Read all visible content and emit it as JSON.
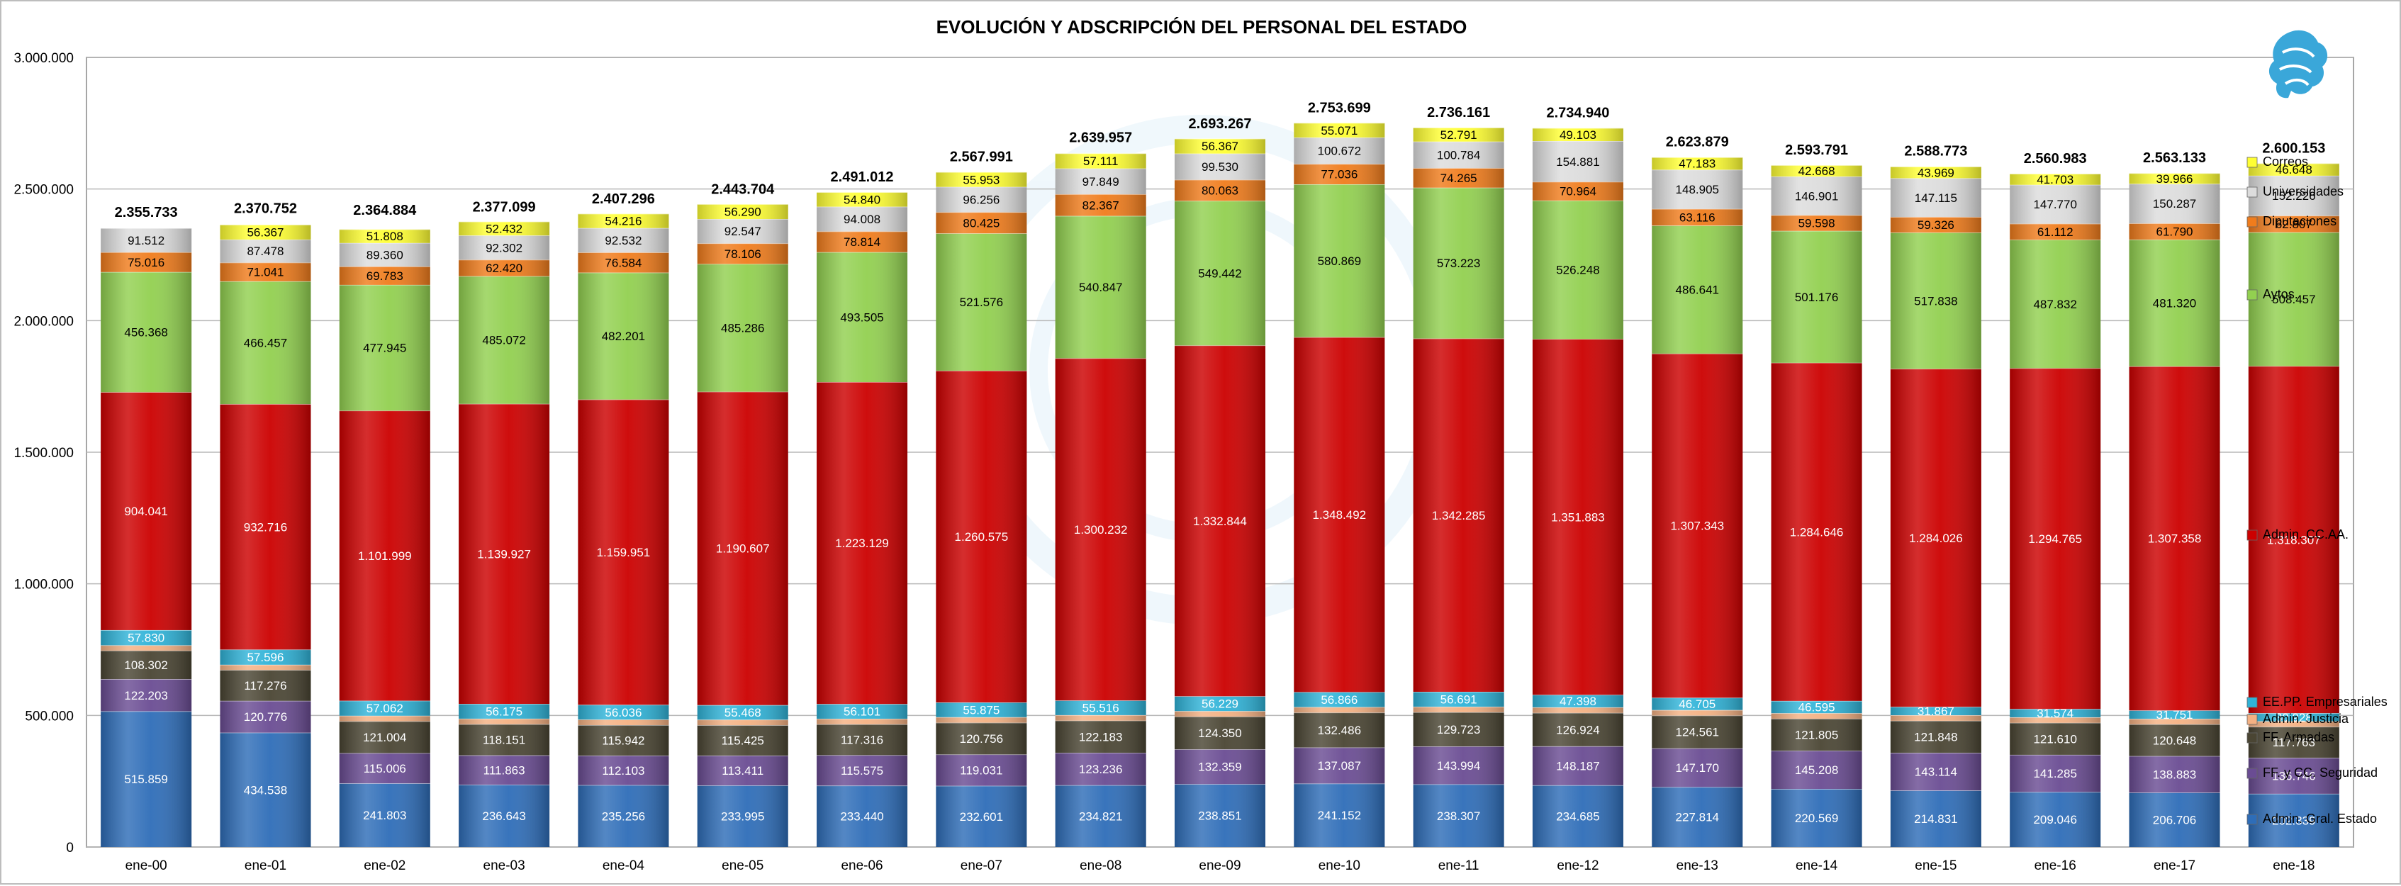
{
  "chart_data": {
    "type": "bar",
    "stacked": true,
    "title": "EVOLUCIÓN Y ADSCRIPCIÓN DEL PERSONAL DEL ESTADO",
    "xlabel": "",
    "ylabel": "",
    "ylim": [
      0,
      3000000
    ],
    "y_ticks": [
      "0",
      "500.000",
      "1.000.000",
      "1.500.000",
      "2.000.000",
      "2.500.000",
      "3.000.000"
    ],
    "y_tick_values": [
      0,
      500000,
      1000000,
      1500000,
      2000000,
      2500000,
      3000000
    ],
    "grid": true,
    "legend_position": "right",
    "categories": [
      "ene-00",
      "ene-01",
      "ene-02",
      "ene-03",
      "ene-04",
      "ene-05",
      "ene-06",
      "ene-07",
      "ene-08",
      "ene-09",
      "ene-10",
      "ene-11",
      "ene-12",
      "ene-13",
      "ene-14",
      "ene-15",
      "ene-16",
      "ene-17",
      "ene-18"
    ],
    "totals": [
      2355733,
      2370752,
      2364884,
      2377099,
      2407296,
      2443704,
      2491012,
      2567991,
      2639957,
      2693267,
      2753699,
      2736161,
      2734940,
      2623879,
      2593791,
      2588773,
      2560983,
      2563133,
      2600153
    ],
    "total_labels": [
      "2.355.733",
      "2.370.752",
      "2.364.884",
      "2.377.099",
      "2.407.296",
      "2.443.704",
      "2.491.012",
      "2.567.991",
      "2.639.957",
      "2.693.267",
      "2.753.699",
      "2.736.161",
      "2.734.940",
      "2.623.879",
      "2.593.791",
      "2.588.773",
      "2.560.983",
      "2.563.133",
      "2.600.153"
    ],
    "series": [
      {
        "name": "Admin. Gral. Estado",
        "color": "#2e6db8",
        "text_color": "#ffffff",
        "values": [
          515859,
          434538,
          241803,
          236643,
          235256,
          233995,
          233440,
          232601,
          234821,
          238851,
          241152,
          238307,
          234685,
          227814,
          220569,
          214831,
          209046,
          206706,
          202339
        ],
        "labels": [
          "515.859",
          "434.538",
          "241.803",
          "236.643",
          "235.256",
          "233.995",
          "233.440",
          "232.601",
          "234.821",
          "238.851",
          "241.152",
          "238.307",
          "234.685",
          "227.814",
          "220.569",
          "214.831",
          "209.046",
          "206.706",
          "202.339"
        ]
      },
      {
        "name": "FF. y CC. Seguridad",
        "color": "#6a4c93",
        "text_color": "#ffffff",
        "values": [
          122203,
          120776,
          115006,
          111863,
          112103,
          113411,
          115575,
          119031,
          123236,
          132359,
          137087,
          143994,
          148187,
          147170,
          145208,
          143114,
          141285,
          138883,
          136746
        ],
        "labels": [
          "122.203",
          "120.776",
          "115.006",
          "111.863",
          "112.103",
          "113.411",
          "115.575",
          "119.031",
          "123.236",
          "132.359",
          "137.087",
          "143.994",
          "148.187",
          "147.170",
          "145.208",
          "143.114",
          "141.285",
          "138.883",
          "136.746"
        ]
      },
      {
        "name": "FF. Armadas",
        "color": "#4a4533",
        "text_color": "#ffffff",
        "values": [
          108302,
          117276,
          121004,
          118151,
          115942,
          115425,
          117316,
          120756,
          122183,
          124350,
          132486,
          129723,
          126924,
          124561,
          121805,
          121848,
          121610,
          120648,
          117763
        ],
        "labels": [
          "108.302",
          "117.276",
          "121.004",
          "118.151",
          "115.942",
          "115.425",
          "117.316",
          "120.756",
          "122.183",
          "124.350",
          "132.486",
          "129.723",
          "126.924",
          "124.561",
          "121.805",
          "121.848",
          "121.610",
          "120.648",
          "117.763"
        ]
      },
      {
        "name": "Admin. Justicia",
        "color": "#f4b183",
        "text_color": "#000000",
        "values": [
          20000,
          20000,
          21000,
          21000,
          21000,
          21000,
          21000,
          21000,
          21000,
          21000,
          21000,
          21000,
          21000,
          21000,
          21000,
          21000,
          21000,
          21000,
          21000
        ],
        "labels": []
      },
      {
        "name": "EE.PP. Empresariales",
        "color": "#2fb3d8",
        "text_color": "#ffffff",
        "values": [
          57830,
          57596,
          57062,
          56175,
          56036,
          55468,
          56101,
          55875,
          55516,
          56229,
          56866,
          56691,
          47398,
          46705,
          46595,
          31867,
          31574,
          31751,
          30928
        ],
        "labels": [
          "57.830",
          "57.596",
          "57.062",
          "56.175",
          "56.036",
          "55.468",
          "56.101",
          "55.875",
          "55.516",
          "56.229",
          "56.866",
          "56.691",
          "47.398",
          "46.705",
          "46.595",
          "31.867",
          "31.574",
          "31.751",
          "30.928"
        ]
      },
      {
        "name": "Admin. CC.AA.",
        "color": "#cc0000",
        "text_color": "#ffffff",
        "values": [
          904041,
          932716,
          1101999,
          1139927,
          1159951,
          1190607,
          1223129,
          1260575,
          1300232,
          1332844,
          1348492,
          1342285,
          1351883,
          1307343,
          1284646,
          1284026,
          1294765,
          1307358,
          1318307
        ],
        "labels": [
          "904.041",
          "932.716",
          "1.101.999",
          "1.139.927",
          "1.159.951",
          "1.190.607",
          "1.223.129",
          "1.260.575",
          "1.300.232",
          "1.332.844",
          "1.348.492",
          "1.342.285",
          "1.351.883",
          "1.307.343",
          "1.284.646",
          "1.284.026",
          "1.294.765",
          "1.307.358",
          "1.318.307"
        ]
      },
      {
        "name": "Aytos.",
        "color": "#92d050",
        "text_color": "#000000",
        "values": [
          456368,
          466457,
          477945,
          485072,
          482201,
          485286,
          493505,
          521576,
          540847,
          549442,
          580869,
          573223,
          526248,
          486641,
          501176,
          517838,
          487832,
          481320,
          508457
        ],
        "labels": [
          "456.368",
          "466.457",
          "477.945",
          "485.072",
          "482.201",
          "485.286",
          "493.505",
          "521.576",
          "540.847",
          "549.442",
          "580.869",
          "573.223",
          "526.248",
          "486.641",
          "501.176",
          "517.838",
          "487.832",
          "481.320",
          "508.457"
        ]
      },
      {
        "name": "Diputaciones",
        "color": "#f07c1c",
        "text_color": "#000000",
        "values": [
          75016,
          71041,
          69783,
          62420,
          76584,
          78106,
          78814,
          80425,
          82367,
          80063,
          77036,
          74265,
          70964,
          63116,
          59598,
          59326,
          61112,
          61790,
          62807
        ],
        "labels": [
          "75.016",
          "71.041",
          "69.783",
          "62.420",
          "76.584",
          "78.106",
          "78.814",
          "80.425",
          "82.367",
          "80.063",
          "77.036",
          "74.265",
          "70.964",
          "63.116",
          "59.598",
          "59.326",
          "61.112",
          "61.790",
          "62.807"
        ]
      },
      {
        "name": "Universidades",
        "color": "#dcdcdc",
        "text_color": "#000000",
        "values": [
          91512,
          87478,
          89360,
          92302,
          92532,
          92547,
          94008,
          96256,
          97849,
          99530,
          100672,
          100784,
          154881,
          148905,
          146901,
          147115,
          147770,
          150287,
          152226
        ],
        "labels": [
          "91.512",
          "87.478",
          "89.360",
          "92.302",
          "92.532",
          "92.547",
          "94.008",
          "96.256",
          "97.849",
          "99.530",
          "100.672",
          "100.784",
          "154.881",
          "148.905",
          "146.901",
          "147.115",
          "147.770",
          "150.287",
          "152.226"
        ]
      },
      {
        "name": "Correos",
        "color": "#ffff33",
        "text_color": "#000000",
        "values": [
          0,
          56367,
          51808,
          52432,
          54216,
          56290,
          54840,
          55953,
          57111,
          56367,
          55071,
          52791,
          49103,
          47183,
          42668,
          43969,
          41703,
          39966,
          46648
        ],
        "labels": [
          "",
          "56.367",
          "51.808",
          "52.432",
          "54.216",
          "56.290",
          "54.840",
          "55.953",
          "57.111",
          "56.367",
          "55.071",
          "52.791",
          "49.103",
          "47.183",
          "42.668",
          "43.969",
          "41.703",
          "39.966",
          "46.648"
        ]
      }
    ],
    "legend_order": [
      "Correos",
      "Universidades",
      "Diputaciones",
      "Aytos.",
      "Admin. CC.AA.",
      "EE.PP. Empresariales",
      "Admin. Justicia",
      "FF. Armadas",
      "FF. y CC. Seguridad",
      "Admin. Gral. Estado"
    ]
  },
  "logo": {
    "icon": "griffin-logo-icon",
    "color": "#3aa7d9"
  }
}
